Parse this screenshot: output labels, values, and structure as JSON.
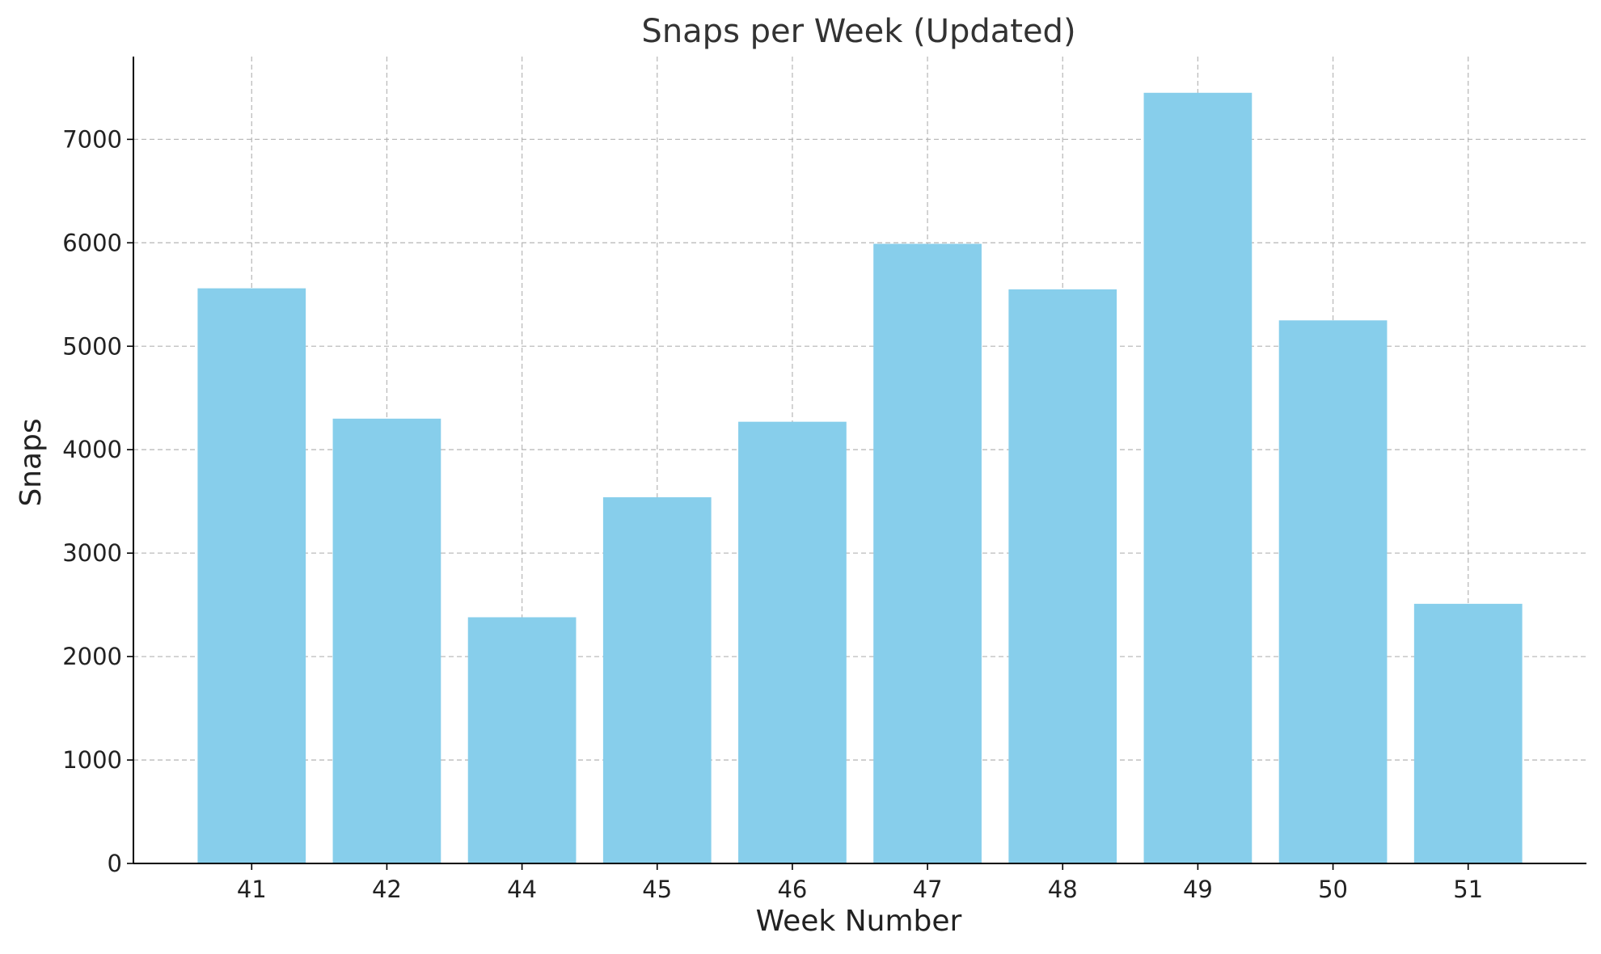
{
  "chart_data": {
    "type": "bar",
    "title": "Snaps per Week (Updated)",
    "xlabel": "Week Number",
    "ylabel": "Snaps",
    "categories": [
      "41",
      "42",
      "44",
      "45",
      "46",
      "47",
      "48",
      "49",
      "50",
      "51"
    ],
    "values": [
      5560,
      4300,
      2380,
      3540,
      4270,
      5990,
      5550,
      7450,
      5250,
      2510
    ],
    "ylim": [
      0,
      7800
    ],
    "yticks": [
      0,
      1000,
      2000,
      3000,
      4000,
      5000,
      6000,
      7000
    ],
    "grid": true,
    "bar_color": "#87CEEB"
  }
}
